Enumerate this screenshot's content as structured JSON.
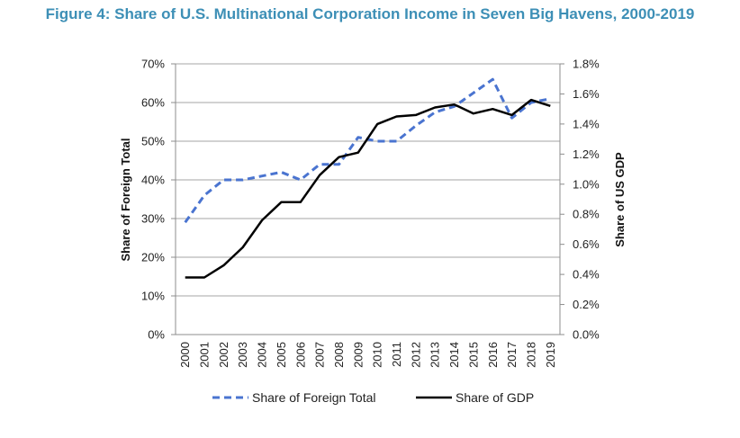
{
  "title": "Figure 4: Share of U.S. Multinational Corporation Income in Seven Big Havens, 2000-2019",
  "chart_data": {
    "type": "line",
    "categories": [
      "2000",
      "2001",
      "2002",
      "2003",
      "2004",
      "2005",
      "2006",
      "2007",
      "2008",
      "2009",
      "2010",
      "2011",
      "2012",
      "2013",
      "2014",
      "2015",
      "2016",
      "2017",
      "2018",
      "2019"
    ],
    "y_left": {
      "label": "Share of Foreign Total",
      "lim": [
        0,
        70
      ],
      "ticks": [
        0,
        10,
        20,
        30,
        40,
        50,
        60,
        70
      ],
      "tick_labels": [
        "0%",
        "10%",
        "20%",
        "30%",
        "40%",
        "50%",
        "60%",
        "70%"
      ]
    },
    "y_right": {
      "label": "Share of US GDP",
      "lim": [
        0.0,
        1.8
      ],
      "ticks": [
        0.0,
        0.2,
        0.4,
        0.6,
        0.8,
        1.0,
        1.2,
        1.4,
        1.6,
        1.8
      ],
      "tick_labels": [
        "0.0%",
        "0.2%",
        "0.4%",
        "0.6%",
        "0.8%",
        "1.0%",
        "1.2%",
        "1.4%",
        "1.6%",
        "1.8%"
      ]
    },
    "grid": true,
    "legend_position": "bottom",
    "series": [
      {
        "name": "Share of Foreign Total",
        "axis": "left",
        "style": "dashed",
        "color": "#4a74d0",
        "values": [
          29,
          36,
          40,
          40,
          41,
          42,
          40,
          44,
          44,
          51,
          50,
          50,
          54,
          57.5,
          59,
          62.5,
          66,
          56,
          60,
          61
        ]
      },
      {
        "name": "Share of GDP",
        "axis": "right",
        "style": "solid",
        "color": "#000000",
        "values": [
          0.38,
          0.38,
          0.46,
          0.58,
          0.76,
          0.88,
          0.88,
          1.06,
          1.18,
          1.21,
          1.4,
          1.45,
          1.46,
          1.51,
          1.53,
          1.47,
          1.5,
          1.46,
          1.56,
          1.52
        ]
      }
    ]
  }
}
